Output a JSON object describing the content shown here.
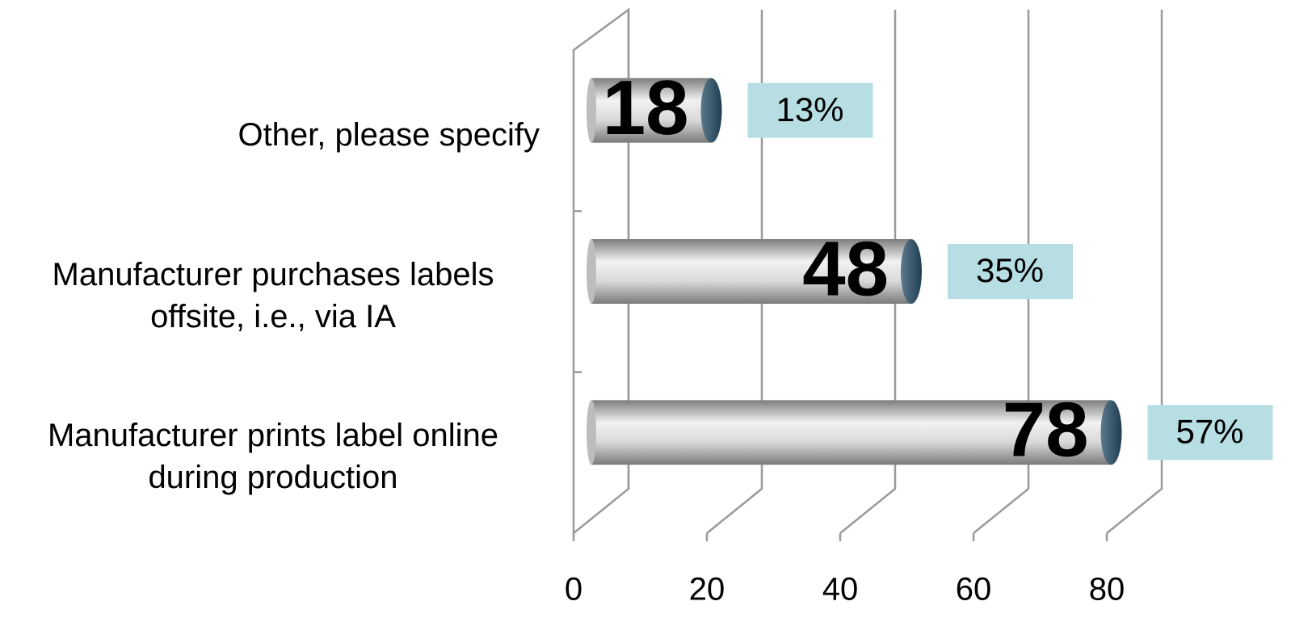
{
  "chart_data": {
    "type": "bar",
    "orientation": "horizontal",
    "categories": [
      "Other, please specify",
      "Manufacturer purchases labels offsite, i.e., via IA",
      "Manufacturer prints label online during production"
    ],
    "values": [
      18,
      48,
      78
    ],
    "color": "#c8c8c8",
    "shares": {
      "values": [
        13,
        35,
        57
      ],
      "value_labels": [
        "13%",
        "35%",
        "57%"
      ],
      "color": "#b7dfe3"
    },
    "xlim": [
      0,
      80
    ],
    "xticks": [
      0,
      20,
      40,
      60,
      80
    ],
    "grid": true
  }
}
